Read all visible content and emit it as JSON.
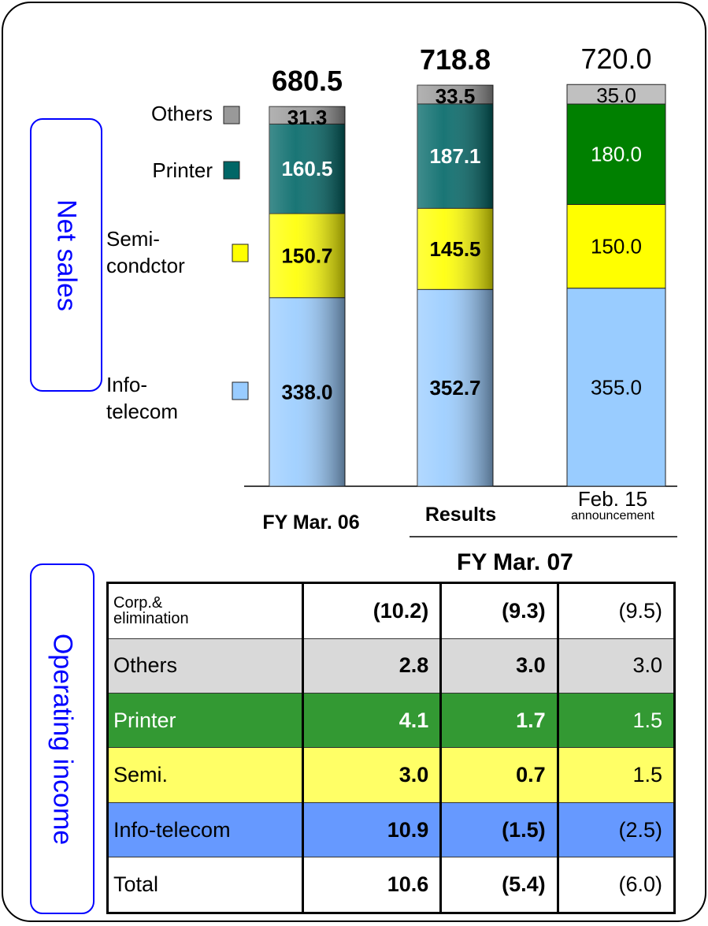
{
  "chart_data": {
    "type": "stacked_bar",
    "y_label": "Net sales",
    "categories": [
      "FY Mar. 06",
      "Results",
      "Feb. 15\nannouncement"
    ],
    "group_label": "FY Mar. 07",
    "totals": [
      680.5,
      718.8,
      720.0
    ],
    "totals_labels": [
      "680.5",
      "718.8",
      "720.0"
    ],
    "series": [
      {
        "name": "Info-\ntelecom",
        "colors": [
          "#99ccff",
          "#99ccff",
          "#99ccff"
        ],
        "values": [
          338.0,
          352.7,
          355.0
        ],
        "value_labels": [
          "338.0",
          "352.7",
          "355.0"
        ]
      },
      {
        "name": "Semi-\ncondctor",
        "colors": [
          "#ffff00",
          "#ffff00",
          "#ffff00"
        ],
        "values": [
          150.7,
          145.5,
          150.0
        ],
        "value_labels": [
          "150.7",
          "145.5",
          "150.0"
        ]
      },
      {
        "name": "Printer",
        "colors": [
          "#006666",
          "#006666",
          "#008000"
        ],
        "values": [
          160.5,
          187.1,
          180.0
        ],
        "value_labels": [
          "160.5",
          "187.1",
          "180.0"
        ]
      },
      {
        "name": "Others",
        "colors": [
          "#999999",
          "#999999",
          "#c0c0c0"
        ],
        "values": [
          31.3,
          33.5,
          35.0
        ],
        "value_labels": [
          "31.3",
          "33.5",
          "35.0"
        ]
      }
    ]
  },
  "table": {
    "title": "Operating income",
    "rows": [
      [
        "Corp.&\nelimination",
        "(10.2)",
        "(9.3)",
        "(9.5)"
      ],
      [
        "Others",
        "2.8",
        "3.0",
        "3.0"
      ],
      [
        "Printer",
        "4.1",
        "1.7",
        "1.5"
      ],
      [
        "Semi.",
        "3.0",
        "0.7",
        "1.5"
      ],
      [
        "Info-telecom",
        "10.9",
        "(1.5)",
        "(2.5)"
      ],
      [
        "Total",
        "10.6",
        "(5.4)",
        "(6.0)"
      ]
    ]
  }
}
